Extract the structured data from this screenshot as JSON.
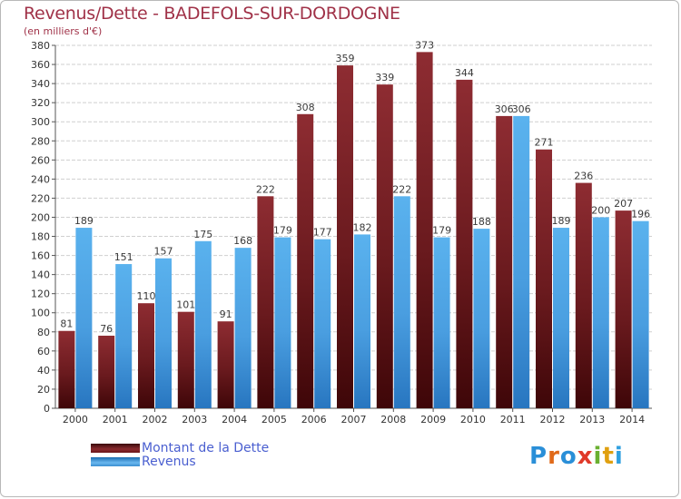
{
  "chart_data": {
    "type": "bar",
    "title": "Revenus/Dette - BADEFOLS-SUR-DORDOGNE",
    "subtitle": "(en milliers d'€)",
    "xlabel": "",
    "ylabel": "",
    "categories": [
      "2000",
      "2001",
      "2002",
      "2003",
      "2004",
      "2005",
      "2006",
      "2007",
      "2008",
      "2009",
      "2010",
      "2011",
      "2012",
      "2013",
      "2014"
    ],
    "series": [
      {
        "name": "Montant de la Dette",
        "color": "#7a1e22",
        "values": [
          81,
          76,
          110,
          101,
          91,
          222,
          308,
          359,
          339,
          373,
          344,
          306,
          271,
          236,
          207
        ]
      },
      {
        "name": "Revenus",
        "color": "#4a9fe0",
        "values": [
          189,
          151,
          157,
          175,
          168,
          179,
          177,
          182,
          222,
          179,
          188,
          306,
          189,
          200,
          196
        ]
      }
    ],
    "ylim": [
      0,
      380
    ],
    "ytick_step": 20,
    "grid": true,
    "legend": "bottom-left"
  },
  "logo": {
    "text": "Proxiti"
  }
}
